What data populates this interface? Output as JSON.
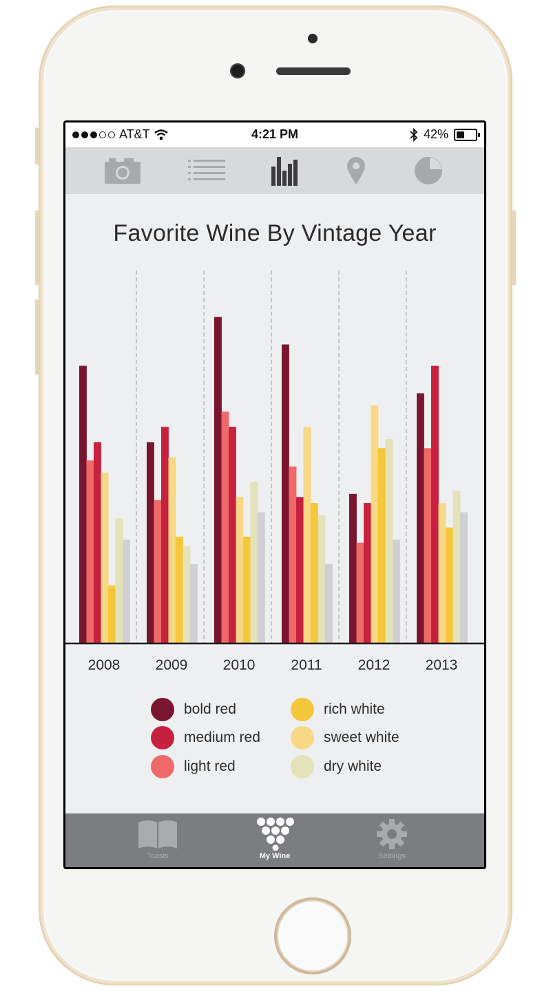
{
  "status_bar": {
    "carrier": "AT&T",
    "signal_dots_filled": 3,
    "signal_dots_total": 5,
    "time": "4:21 PM",
    "battery_percent": "42%",
    "battery_level": 0.42
  },
  "top_nav": {
    "items": [
      {
        "icon": "camera-icon",
        "active": false
      },
      {
        "icon": "list-icon",
        "active": false
      },
      {
        "icon": "bar-chart-icon",
        "active": true
      },
      {
        "icon": "location-pin-icon",
        "active": false
      },
      {
        "icon": "pie-chart-icon",
        "active": false
      }
    ]
  },
  "chart_title": "Favorite Wine By Vintage Year",
  "chart_data": {
    "type": "bar",
    "title": "Favorite Wine By Vintage Year",
    "categories": [
      "2008",
      "2009",
      "2010",
      "2011",
      "2012",
      "2013"
    ],
    "series": [
      {
        "name": "bold red",
        "color": "#7a1530",
        "values": [
          91,
          66,
          107,
          98,
          49,
          82
        ]
      },
      {
        "name": "light red",
        "color": "#ef6968",
        "values": [
          60,
          47,
          76,
          58,
          33,
          64
        ]
      },
      {
        "name": "medium red",
        "color": "#c8203f",
        "values": [
          66,
          71,
          71,
          48,
          46,
          91
        ]
      },
      {
        "name": "sweet white",
        "color": "#f8d785",
        "values": [
          56,
          61,
          48,
          71,
          78,
          46
        ]
      },
      {
        "name": "rich white",
        "color": "#f5c73a",
        "values": [
          19,
          35,
          35,
          46,
          64,
          38
        ]
      },
      {
        "name": "dry white",
        "color": "#e3e2b8",
        "values": [
          41,
          32,
          53,
          42,
          67,
          50
        ]
      },
      {
        "name": "",
        "color": "#d0d0d2",
        "values": [
          34,
          26,
          43,
          26,
          34,
          43
        ]
      }
    ],
    "grid": "dashed vertical separators",
    "ylim": [
      0,
      120
    ]
  },
  "legend": {
    "items": [
      {
        "label": "bold red",
        "color": "#7a1530"
      },
      {
        "label": "medium red",
        "color": "#c8203f"
      },
      {
        "label": "light red",
        "color": "#ef6968"
      },
      {
        "label": "rich white",
        "color": "#f5c73a"
      },
      {
        "label": "sweet white",
        "color": "#f8d785"
      },
      {
        "label": "dry white",
        "color": "#e3e2b8"
      }
    ]
  },
  "tab_bar": {
    "tabs": [
      {
        "label": "Toasts",
        "icon": "book-icon",
        "active": false
      },
      {
        "label": "My Wine",
        "icon": "grapes-icon",
        "active": true
      },
      {
        "label": "Settings",
        "icon": "gear-icon",
        "active": false
      }
    ]
  }
}
